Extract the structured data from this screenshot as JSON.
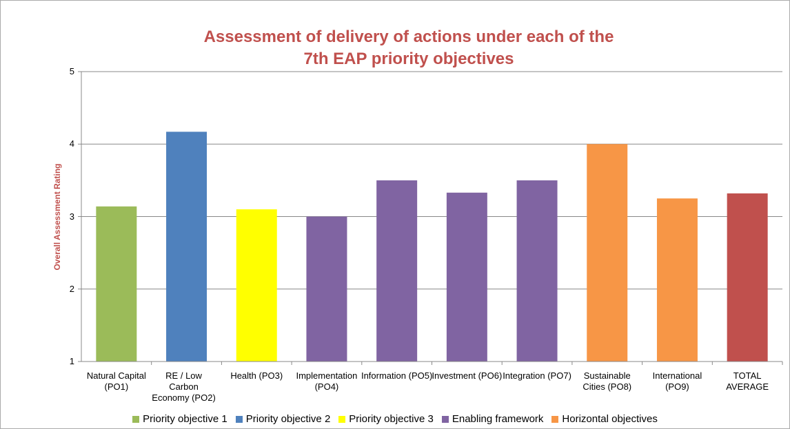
{
  "chart_data": {
    "type": "bar",
    "title": "Assessment of delivery of actions under each of the 7th EAP priority objectives",
    "y_label": "Overall Assessment Rating",
    "categories": [
      "Natural Capital (PO1)",
      "RE / Low Carbon Economy (PO2)",
      "Health (PO3)",
      "Implementation (PO4)",
      "Information (PO5)",
      "Investment (PO6)",
      "Integration (PO7)",
      "Sustainable Cities (PO8)",
      "International (PO9)",
      "TOTAL AVERAGE"
    ],
    "values": [
      3.14,
      4.17,
      3.1,
      3.0,
      3.5,
      3.33,
      3.5,
      4.0,
      3.25,
      3.32
    ],
    "colors": [
      "#9bbb59",
      "#4f81bd",
      "#ffff00",
      "#8064a2",
      "#8064a2",
      "#8064a2",
      "#8064a2",
      "#f79646",
      "#f79646",
      "#c0504d"
    ],
    "ylim": [
      1,
      5
    ],
    "yticks": [
      1,
      2,
      3,
      4,
      5
    ],
    "grid": true,
    "legend": [
      {
        "name": "Priority objective 1",
        "color": "#9bbb59"
      },
      {
        "name": "Priority objective 2",
        "color": "#4f81bd"
      },
      {
        "name": "Priority objective 3",
        "color": "#ffff00"
      },
      {
        "name": "Enabling framework",
        "color": "#8064a2"
      },
      {
        "name": "Horizontal objectives",
        "color": "#f79646"
      }
    ]
  }
}
